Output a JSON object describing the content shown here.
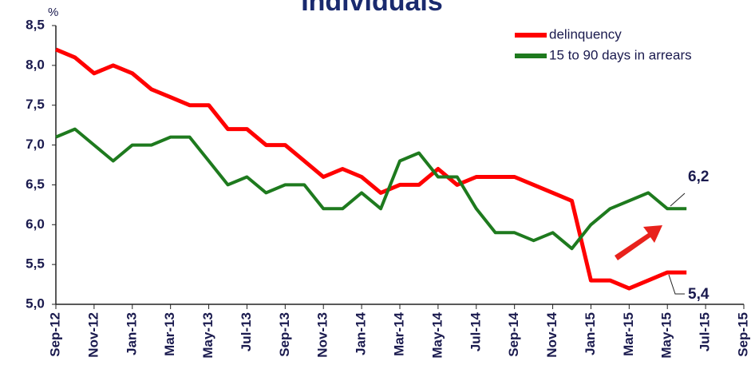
{
  "chart_data": {
    "type": "line",
    "title": "Individuals",
    "y_unit": "%",
    "categories": [
      "Sep-12",
      null,
      "Nov-12",
      null,
      "Jan-13",
      null,
      "Mar-13",
      null,
      "May-13",
      null,
      "Jul-13",
      null,
      "Sep-13",
      null,
      "Nov-13",
      null,
      "Jan-14",
      null,
      "Mar-14",
      null,
      "May-14",
      null,
      "Jul-14",
      null,
      "Sep-14",
      null,
      "Nov-14",
      null,
      "Jan-15",
      null,
      "Mar-15",
      null,
      "May-15",
      null,
      "Jul-15",
      null,
      "Sep-15"
    ],
    "series": [
      {
        "name": "delinquency",
        "color": "#ff0000",
        "values": [
          8.2,
          8.1,
          7.9,
          8.0,
          7.9,
          7.7,
          7.6,
          7.5,
          7.5,
          7.2,
          7.2,
          7.0,
          7.0,
          6.8,
          6.6,
          6.7,
          6.6,
          6.4,
          6.5,
          6.5,
          6.7,
          6.5,
          6.6,
          6.6,
          6.6,
          6.5,
          6.4,
          6.3,
          5.3,
          5.3,
          5.2,
          5.3,
          5.4,
          5.4,
          null,
          null,
          null
        ]
      },
      {
        "name": "15 to 90 days in arrears",
        "color": "#1e7a1e",
        "values": [
          7.1,
          7.2,
          7.0,
          6.8,
          7.0,
          7.0,
          7.1,
          7.1,
          6.8,
          6.5,
          6.6,
          6.4,
          6.5,
          6.5,
          6.2,
          6.2,
          6.4,
          6.2,
          6.8,
          6.9,
          6.6,
          6.6,
          6.2,
          5.9,
          5.9,
          5.8,
          5.9,
          5.7,
          6.0,
          6.2,
          6.3,
          6.4,
          6.2,
          6.2,
          null,
          null,
          null
        ]
      }
    ],
    "annotations": [
      "6,2",
      "5,4"
    ],
    "ylim": [
      5.0,
      8.5
    ],
    "yticks": [
      {
        "value": 5.0,
        "label": "5,0"
      },
      {
        "value": 5.5,
        "label": "5,5"
      },
      {
        "value": 6.0,
        "label": "6,0"
      },
      {
        "value": 6.5,
        "label": "6,5"
      },
      {
        "value": 7.0,
        "label": "7,0"
      },
      {
        "value": 7.5,
        "label": "7,5"
      },
      {
        "value": 8.0,
        "label": "8,0"
      },
      {
        "value": 8.5,
        "label": "8,5"
      }
    ],
    "grid": false,
    "legend": "upper right"
  }
}
